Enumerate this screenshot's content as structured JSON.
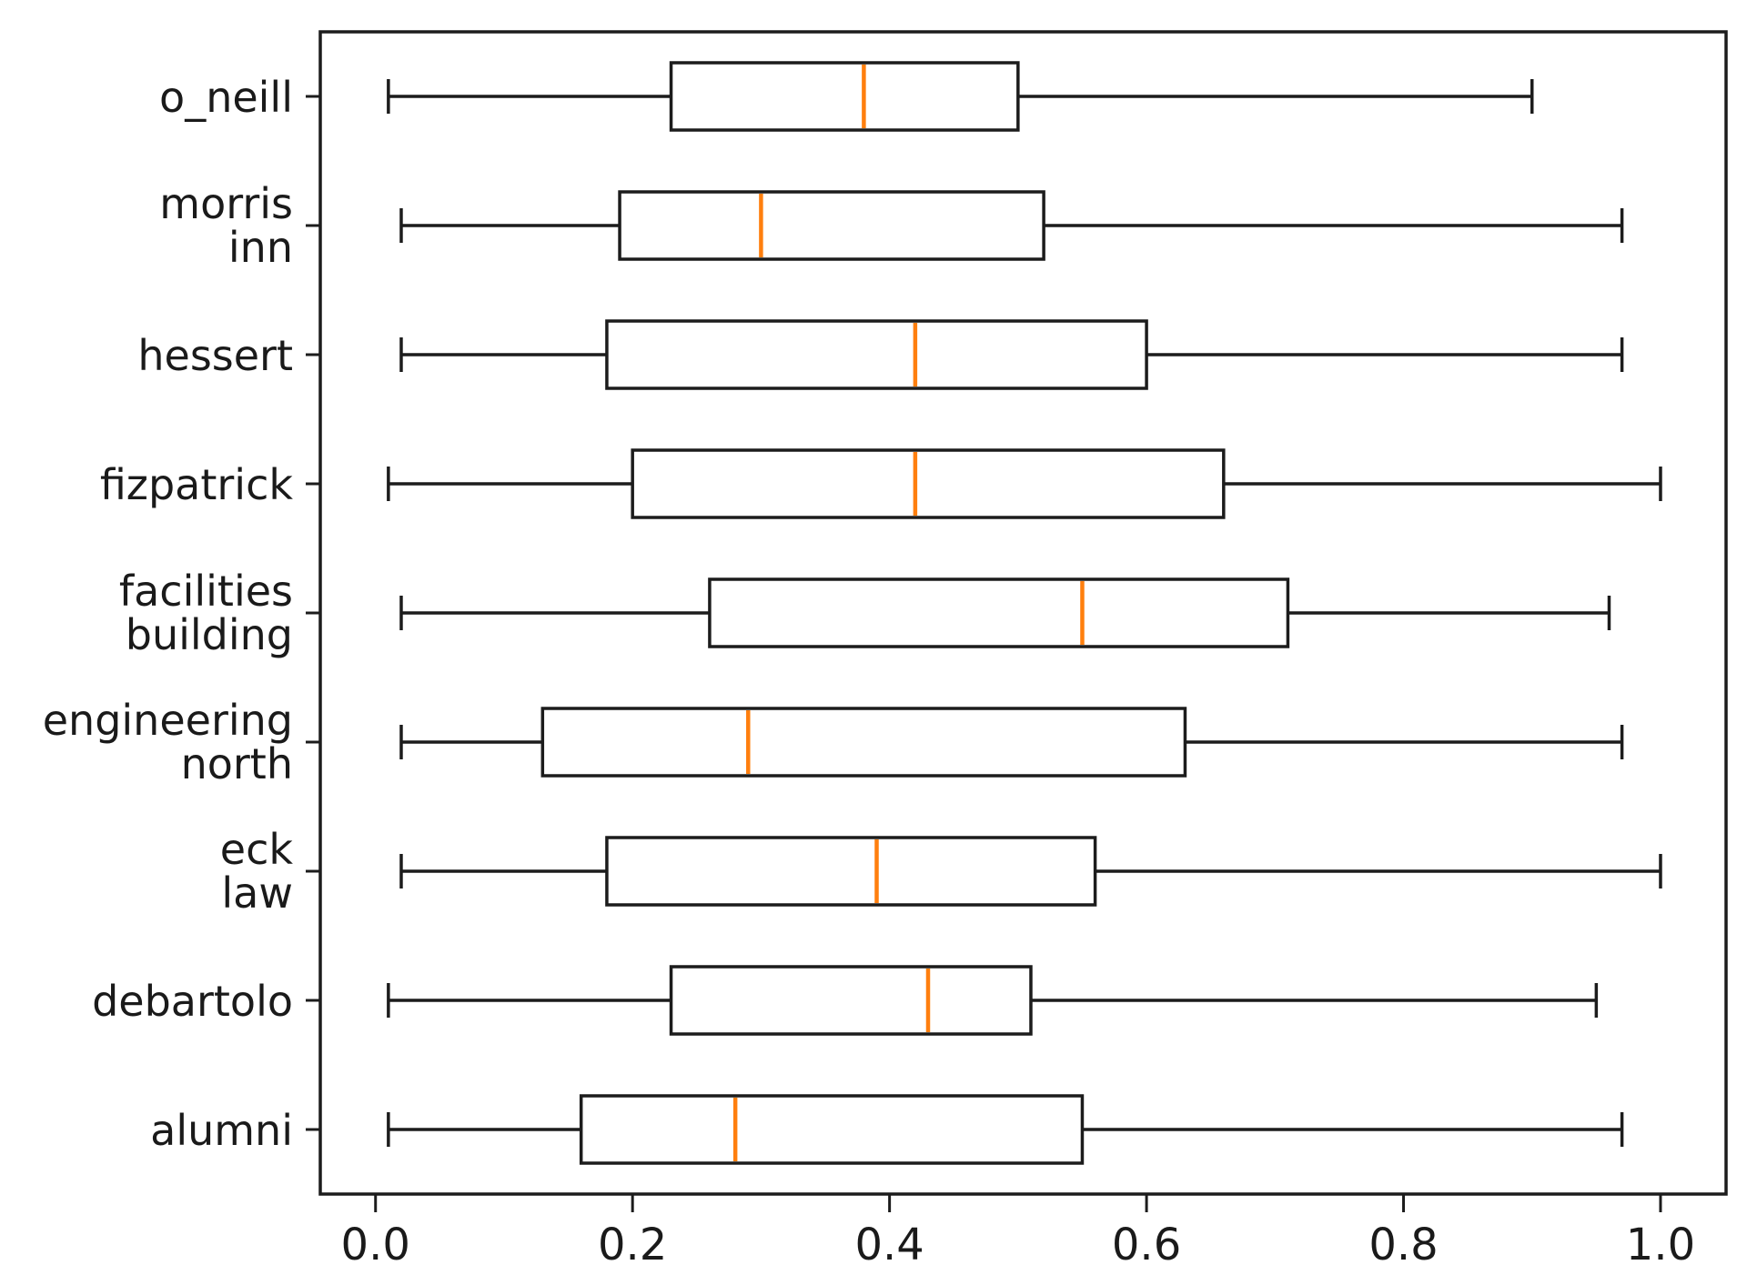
{
  "chart_data": {
    "type": "boxplot",
    "orientation": "horizontal",
    "title": "",
    "xlabel": "",
    "ylabel": "",
    "grid": false,
    "legend": null,
    "xlim": [
      -0.043,
      1.051
    ],
    "x_ticks": [
      0.0,
      0.2,
      0.4,
      0.6,
      0.8,
      1.0
    ],
    "x_tick_labels": [
      "0.0",
      "0.2",
      "0.4",
      "0.6",
      "0.8",
      "1.0"
    ],
    "colors": {
      "line": "#1c1c1c",
      "median": "#ff7f0e",
      "box_fill": "#ffffff",
      "background": "#ffffff"
    },
    "categories_top_to_bottom": [
      "o_neill",
      "morris inn",
      "hessert",
      "fizpatrick",
      "facilities building",
      "engineering north",
      "eck law",
      "debartolo",
      "alumni"
    ],
    "boxes": [
      {
        "label": "o_neill",
        "label_lines": [
          "o_neill"
        ],
        "whisker_low": 0.01,
        "q1": 0.23,
        "median": 0.38,
        "q3": 0.5,
        "whisker_high": 0.9
      },
      {
        "label": "morris inn",
        "label_lines": [
          "morris",
          "inn"
        ],
        "whisker_low": 0.02,
        "q1": 0.19,
        "median": 0.3,
        "q3": 0.52,
        "whisker_high": 0.97
      },
      {
        "label": "hessert",
        "label_lines": [
          "hessert"
        ],
        "whisker_low": 0.02,
        "q1": 0.18,
        "median": 0.42,
        "q3": 0.6,
        "whisker_high": 0.97
      },
      {
        "label": "fizpatrick",
        "label_lines": [
          "fizpatrick"
        ],
        "whisker_low": 0.01,
        "q1": 0.2,
        "median": 0.42,
        "q3": 0.66,
        "whisker_high": 1.0
      },
      {
        "label": "facilities building",
        "label_lines": [
          "facilities",
          "building"
        ],
        "whisker_low": 0.02,
        "q1": 0.26,
        "median": 0.55,
        "q3": 0.71,
        "whisker_high": 0.96
      },
      {
        "label": "engineering north",
        "label_lines": [
          "engineering",
          "north"
        ],
        "whisker_low": 0.02,
        "q1": 0.13,
        "median": 0.29,
        "q3": 0.63,
        "whisker_high": 0.97
      },
      {
        "label": "eck law",
        "label_lines": [
          "eck",
          "law"
        ],
        "whisker_low": 0.02,
        "q1": 0.18,
        "median": 0.39,
        "q3": 0.56,
        "whisker_high": 1.0
      },
      {
        "label": "debartolo",
        "label_lines": [
          "debartolo"
        ],
        "whisker_low": 0.01,
        "q1": 0.23,
        "median": 0.43,
        "q3": 0.51,
        "whisker_high": 0.95
      },
      {
        "label": "alumni",
        "label_lines": [
          "alumni"
        ],
        "whisker_low": 0.01,
        "q1": 0.16,
        "median": 0.28,
        "q3": 0.55,
        "whisker_high": 0.97
      }
    ]
  }
}
